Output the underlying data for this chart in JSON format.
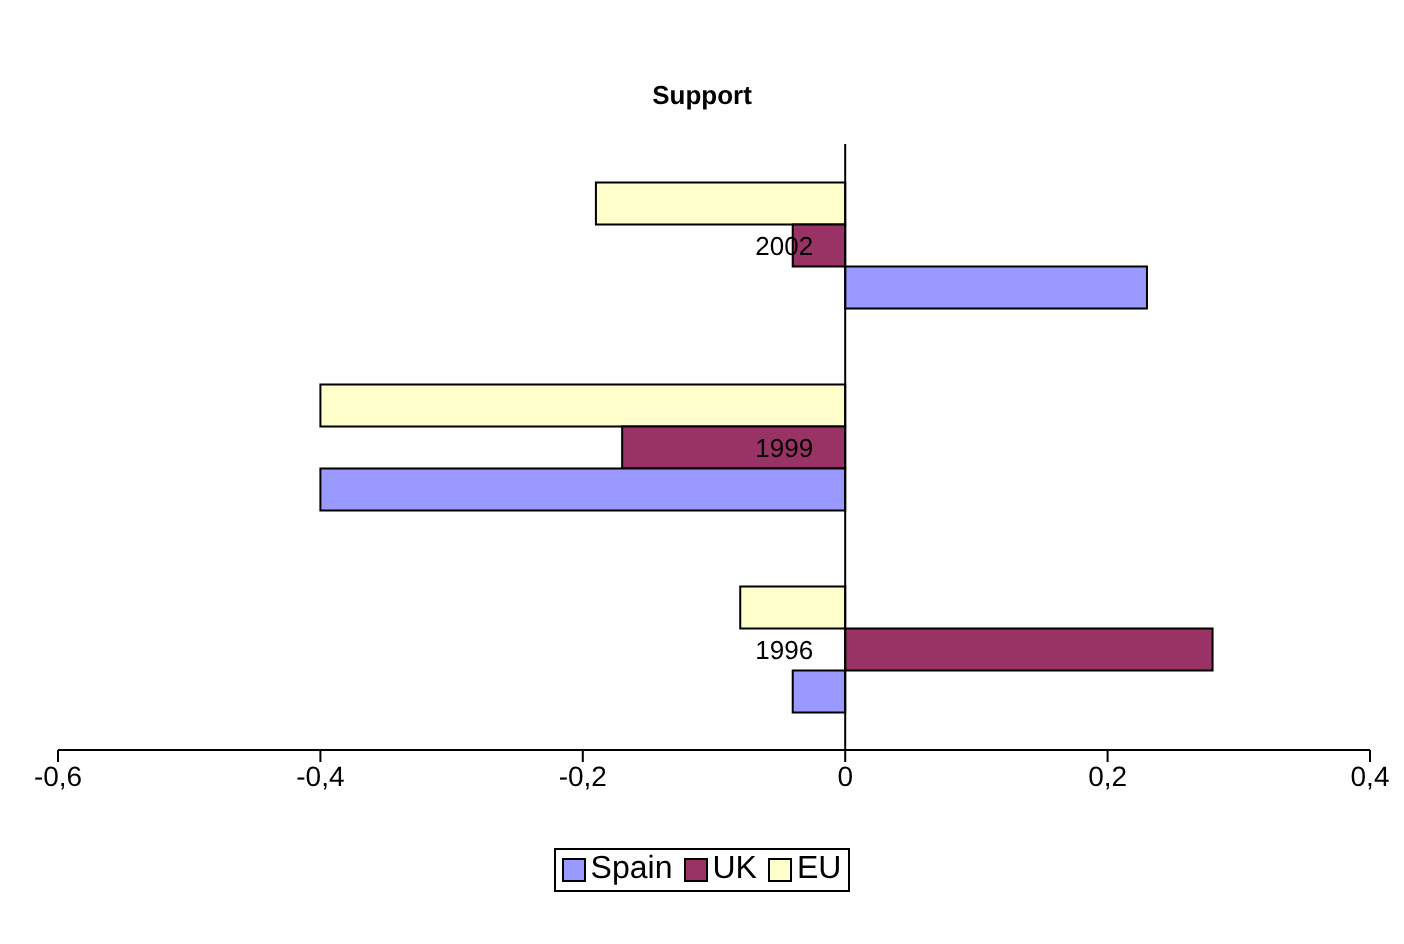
{
  "chart_data": {
    "type": "bar",
    "orientation": "horizontal",
    "title": "Support",
    "categories": [
      "2002",
      "1999",
      "1996"
    ],
    "series": [
      {
        "name": "Spain",
        "color": "#9999ff",
        "values": [
          0.23,
          -0.4,
          -0.04
        ]
      },
      {
        "name": "UK",
        "color": "#993366",
        "values": [
          -0.04,
          -0.17,
          0.28
        ]
      },
      {
        "name": "EU",
        "color": "#ffffcc",
        "values": [
          -0.19,
          -0.4,
          -0.08
        ]
      }
    ],
    "xlim": [
      -0.6,
      0.4
    ],
    "xticks": [
      {
        "value": -0.6,
        "label": "-0,6"
      },
      {
        "value": -0.4,
        "label": "-0,4"
      },
      {
        "value": -0.2,
        "label": "-0,2"
      },
      {
        "value": 0,
        "label": "0"
      },
      {
        "value": 0.2,
        "label": "0,2"
      },
      {
        "value": 0.4,
        "label": "0,4"
      }
    ],
    "legend": "bottom"
  }
}
